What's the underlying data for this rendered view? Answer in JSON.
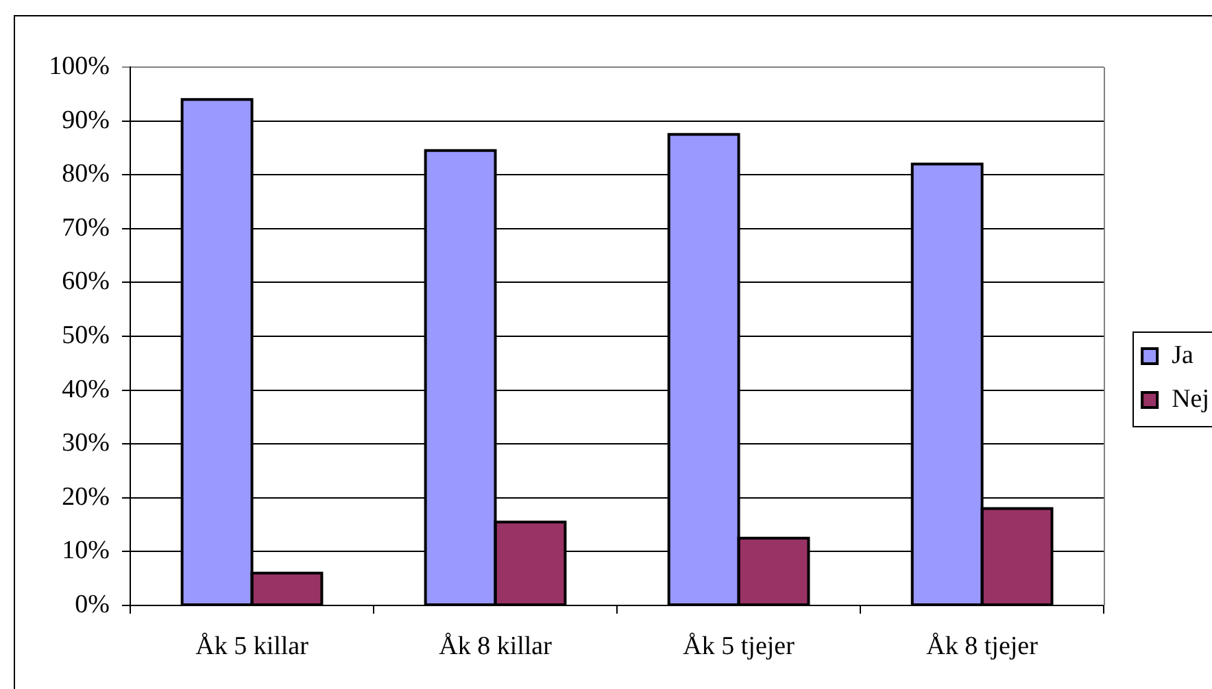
{
  "chart_data": {
    "type": "bar",
    "categories": [
      "Åk 5 killar",
      "Åk 8 killar",
      "Åk 5 tjejer",
      "Åk 8 tjejer"
    ],
    "series": [
      {
        "name": "Ja",
        "color": "#9999ff",
        "values": [
          94,
          84.5,
          87.5,
          82
        ]
      },
      {
        "name": "Nej",
        "color": "#993366",
        "values": [
          6,
          15.5,
          12.5,
          18
        ]
      }
    ],
    "ylim": [
      0,
      100
    ],
    "yticks": [
      {
        "value": 0,
        "label": "0%"
      },
      {
        "value": 10,
        "label": "10%"
      },
      {
        "value": 20,
        "label": "20%"
      },
      {
        "value": 30,
        "label": "30%"
      },
      {
        "value": 40,
        "label": "40%"
      },
      {
        "value": 50,
        "label": "50%"
      },
      {
        "value": 60,
        "label": "60%"
      },
      {
        "value": 70,
        "label": "70%"
      },
      {
        "value": 80,
        "label": "80%"
      },
      {
        "value": 90,
        "label": "90%"
      },
      {
        "value": 100,
        "label": "100%"
      }
    ],
    "grid": "y",
    "legend": "right"
  }
}
